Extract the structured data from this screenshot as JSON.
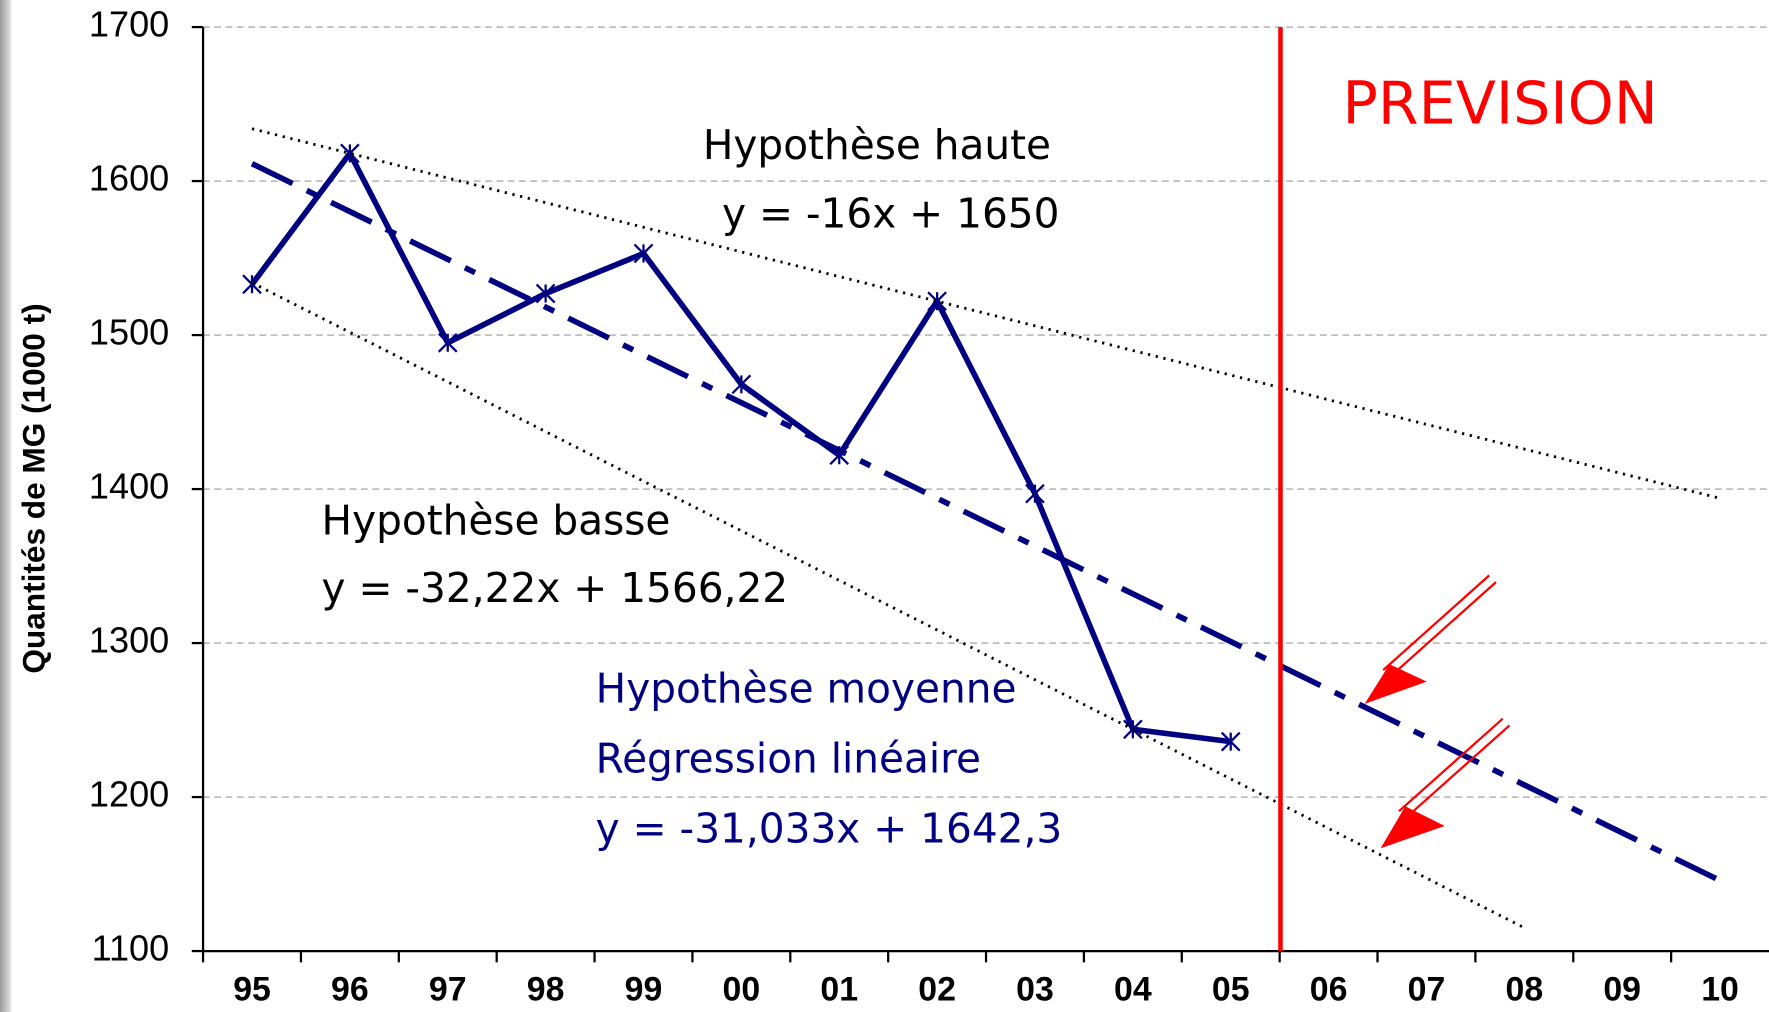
{
  "chart_data": {
    "type": "line",
    "y_label": "Quantités de MG (1000 t)",
    "categories": [
      "95",
      "96",
      "97",
      "98",
      "99",
      "00",
      "01",
      "02",
      "03",
      "04",
      "05",
      "06",
      "07",
      "08",
      "09",
      "10"
    ],
    "series": [
      {
        "color": "#000080",
        "style": "solid",
        "values": [
          1533,
          1618,
          1495,
          1527,
          1553,
          1468,
          1422,
          1522,
          1397,
          1244,
          1236,
          null,
          null,
          null,
          null,
          null
        ]
      },
      {
        "color": "#000000",
        "style": "dotted",
        "values": [
          1634,
          1618,
          1602,
          1586,
          1570,
          1554,
          1538,
          1522,
          1506,
          1490,
          1474,
          1458,
          1442,
          1426,
          1410,
          1394
        ]
      },
      {
        "color": "#000000",
        "style": "dotted",
        "values": [
          1534,
          1501.8,
          1469.6,
          1437.3,
          1405.1,
          1372.9,
          1340.7,
          1308.5,
          1276.2,
          1244,
          1211.8,
          1179.6,
          1147.4,
          1115.1,
          null,
          null
        ]
      },
      {
        "color": "#000080",
        "style": "dashed",
        "values": [
          1611.3,
          1580.2,
          1549.2,
          1518.2,
          1487.1,
          1456.1,
          1425.1,
          1394.0,
          1363.0,
          1332.0,
          1301.0,
          1269.9,
          1238.9,
          1207.9,
          1176.8,
          1145.8
        ]
      }
    ],
    "ylim": [
      1100,
      1700
    ],
    "yticks": [
      1100,
      1200,
      1300,
      1400,
      1500,
      1600,
      1700
    ],
    "grid": true,
    "annotations": [
      {
        "text": "Hypothèse haute",
        "color": "#000000"
      },
      {
        "text": "y = -16x + 1650",
        "color": "#000000"
      },
      {
        "text": "Hypothèse basse",
        "color": "#000000"
      },
      {
        "text": "y = -32,22x + 1566,22",
        "color": "#000000"
      },
      {
        "text": "Hypothèse moyenne",
        "color": "#000080"
      },
      {
        "text": "Régression linéaire",
        "color": "#000080"
      },
      {
        "text": "y = -31,033x + 1642,3",
        "color": "#000080"
      },
      {
        "text": "PREVISION",
        "color": "#ff0000"
      }
    ]
  }
}
